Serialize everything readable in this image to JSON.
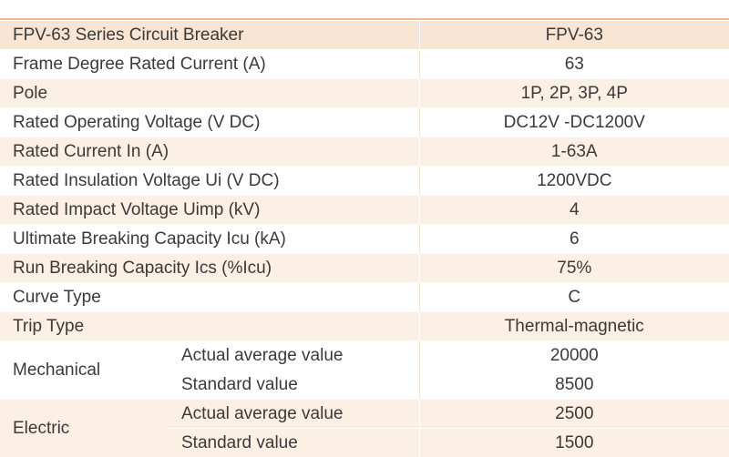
{
  "header": {
    "label": "FPV-63 Series Circuit Breaker",
    "value": "FPV-63"
  },
  "rows": [
    {
      "label": "Frame Degree Rated Current (A)",
      "value": "63"
    },
    {
      "label": "Pole",
      "value": "1P, 2P, 3P, 4P"
    },
    {
      "label": "Rated Operating Voltage (V DC)",
      "value": "DC12V -DC1200V"
    },
    {
      "label": "Rated Current In (A)",
      "value": "1-63A"
    },
    {
      "label": "Rated Insulation Voltage Ui (V DC)",
      "value": "1200VDC"
    },
    {
      "label": "Rated Impact Voltage Uimp (kV)",
      "value": "4"
    },
    {
      "label": "Ultimate Breaking Capacity Icu (kA)",
      "value": "6"
    },
    {
      "label": "Run Breaking Capacity Ics (%Icu)",
      "value": "75%"
    },
    {
      "label": "Curve Type",
      "value": "C"
    },
    {
      "label": "Trip Type",
      "value": "Thermal-magnetic"
    }
  ],
  "groups": [
    {
      "label": "Mechanical",
      "items": [
        {
          "label": "Actual average value",
          "value": "20000"
        },
        {
          "label": "Standard value",
          "value": "8500"
        }
      ]
    },
    {
      "label": "Electric",
      "items": [
        {
          "label": "Actual average value",
          "value": "2500"
        },
        {
          "label": "Standard value",
          "value": "1500"
        }
      ]
    }
  ]
}
